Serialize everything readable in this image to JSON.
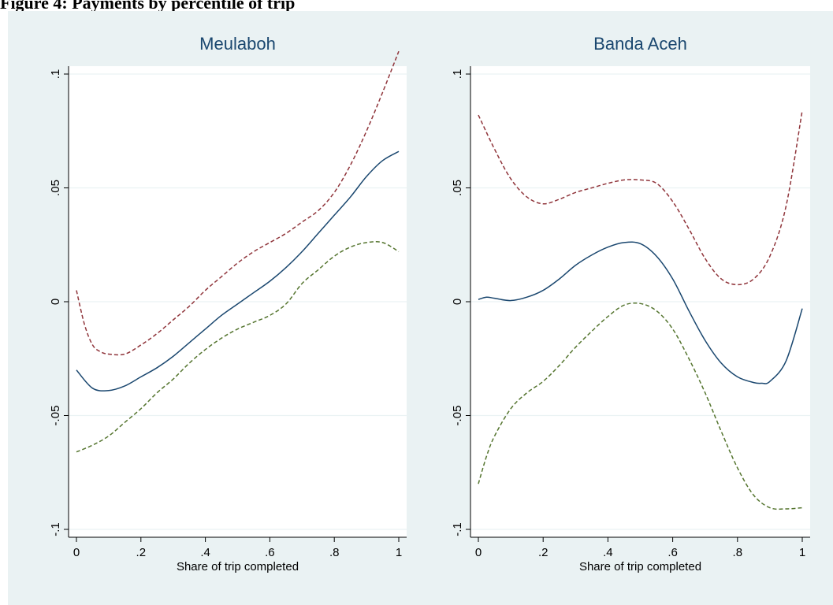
{
  "figure_title": "Figure 4: Payments by percentile of trip",
  "colors": {
    "outer_background": "#eaf2f3",
    "plot_background": "#ffffff",
    "grid": "#eaf2f3",
    "estimate_line": "#1a476f",
    "upper_ci_line": "#90353b",
    "lower_ci_line": "#55752f",
    "panel_title": "#1a476f"
  },
  "chart_data": [
    {
      "type": "line",
      "title": "Meulaboh",
      "xlabel": "Share of trip completed",
      "ylabel": "",
      "xlim": [
        0,
        1
      ],
      "ylim": [
        -0.1,
        0.1
      ],
      "x_ticks": [
        0,
        0.2,
        0.4,
        0.6,
        0.8,
        1
      ],
      "x_tick_labels": [
        "0",
        ".2",
        ".4",
        ".6",
        ".8",
        "1"
      ],
      "y_ticks": [
        -0.1,
        -0.05,
        0,
        0.05,
        0.1
      ],
      "y_tick_labels": [
        "-.1",
        "-.05",
        "0",
        ".05",
        ".1"
      ],
      "grid": true,
      "legend": "none",
      "series": [
        {
          "role": "estimate",
          "style": "solid",
          "x": [
            0,
            0.05,
            0.1,
            0.15,
            0.2,
            0.25,
            0.3,
            0.35,
            0.4,
            0.45,
            0.5,
            0.55,
            0.6,
            0.65,
            0.7,
            0.75,
            0.8,
            0.85,
            0.9,
            0.95,
            1
          ],
          "y": [
            -0.03,
            -0.038,
            -0.039,
            -0.037,
            -0.033,
            -0.029,
            -0.024,
            -0.018,
            -0.012,
            -0.006,
            -0.001,
            0.004,
            0.009,
            0.015,
            0.022,
            0.03,
            0.038,
            0.046,
            0.055,
            0.062,
            0.066
          ]
        },
        {
          "role": "upper_ci",
          "style": "dashed",
          "x": [
            0,
            0.025,
            0.05,
            0.075,
            0.1,
            0.15,
            0.2,
            0.25,
            0.3,
            0.35,
            0.4,
            0.45,
            0.5,
            0.55,
            0.6,
            0.65,
            0.7,
            0.75,
            0.8,
            0.85,
            0.9,
            0.95,
            1
          ],
          "y": [
            0.005,
            -0.01,
            -0.019,
            -0.022,
            -0.023,
            -0.023,
            -0.019,
            -0.014,
            -0.008,
            -0.002,
            0.005,
            0.011,
            0.017,
            0.022,
            0.026,
            0.03,
            0.035,
            0.04,
            0.048,
            0.06,
            0.075,
            0.092,
            0.11
          ]
        },
        {
          "role": "lower_ci",
          "style": "dashed",
          "x": [
            0,
            0.05,
            0.1,
            0.15,
            0.2,
            0.25,
            0.3,
            0.35,
            0.4,
            0.45,
            0.5,
            0.55,
            0.6,
            0.65,
            0.7,
            0.75,
            0.8,
            0.85,
            0.9,
            0.95,
            1
          ],
          "y": [
            -0.066,
            -0.063,
            -0.059,
            -0.053,
            -0.047,
            -0.04,
            -0.034,
            -0.027,
            -0.021,
            -0.016,
            -0.012,
            -0.009,
            -0.006,
            -0.001,
            0.008,
            0.014,
            0.02,
            0.024,
            0.026,
            0.026,
            0.022
          ]
        }
      ]
    },
    {
      "type": "line",
      "title": "Banda Aceh",
      "xlabel": "Share of trip completed",
      "ylabel": "",
      "xlim": [
        0,
        1
      ],
      "ylim": [
        -0.1,
        0.1
      ],
      "x_ticks": [
        0,
        0.2,
        0.4,
        0.6,
        0.8,
        1
      ],
      "x_tick_labels": [
        "0",
        ".2",
        ".4",
        ".6",
        ".8",
        "1"
      ],
      "y_ticks": [
        -0.1,
        -0.05,
        0,
        0.05,
        0.1
      ],
      "y_tick_labels": [
        "-.1",
        "-.05",
        "0",
        ".05",
        ".1"
      ],
      "grid": true,
      "legend": "none",
      "series": [
        {
          "role": "estimate",
          "style": "solid",
          "x": [
            0,
            0.025,
            0.05,
            0.1,
            0.15,
            0.2,
            0.25,
            0.3,
            0.35,
            0.4,
            0.45,
            0.5,
            0.55,
            0.6,
            0.65,
            0.7,
            0.75,
            0.8,
            0.85,
            0.875,
            0.9,
            0.95,
            1
          ],
          "y": [
            0.001,
            0.002,
            0.0015,
            0.0005,
            0.002,
            0.005,
            0.01,
            0.016,
            0.0205,
            0.024,
            0.026,
            0.0255,
            0.02,
            0.01,
            -0.004,
            -0.017,
            -0.027,
            -0.033,
            -0.0355,
            -0.0358,
            -0.035,
            -0.026,
            -0.003
          ]
        },
        {
          "role": "upper_ci",
          "style": "dashed",
          "x": [
            0,
            0.05,
            0.1,
            0.15,
            0.2,
            0.25,
            0.3,
            0.35,
            0.4,
            0.45,
            0.5,
            0.55,
            0.6,
            0.65,
            0.7,
            0.75,
            0.8,
            0.85,
            0.9,
            0.95,
            1
          ],
          "y": [
            0.082,
            0.067,
            0.054,
            0.046,
            0.043,
            0.045,
            0.048,
            0.05,
            0.052,
            0.0535,
            0.0535,
            0.052,
            0.044,
            0.032,
            0.019,
            0.01,
            0.0075,
            0.01,
            0.02,
            0.042,
            0.084
          ]
        },
        {
          "role": "lower_ci",
          "style": "dashed",
          "x": [
            0,
            0.025,
            0.05,
            0.1,
            0.15,
            0.2,
            0.25,
            0.3,
            0.35,
            0.4,
            0.45,
            0.5,
            0.55,
            0.6,
            0.65,
            0.7,
            0.75,
            0.8,
            0.85,
            0.9,
            0.95,
            1
          ],
          "y": [
            -0.08,
            -0.068,
            -0.059,
            -0.047,
            -0.04,
            -0.035,
            -0.028,
            -0.02,
            -0.013,
            -0.0065,
            -0.0015,
            -0.0008,
            -0.004,
            -0.012,
            -0.025,
            -0.04,
            -0.057,
            -0.073,
            -0.085,
            -0.0905,
            -0.091,
            -0.0905
          ]
        }
      ]
    }
  ]
}
